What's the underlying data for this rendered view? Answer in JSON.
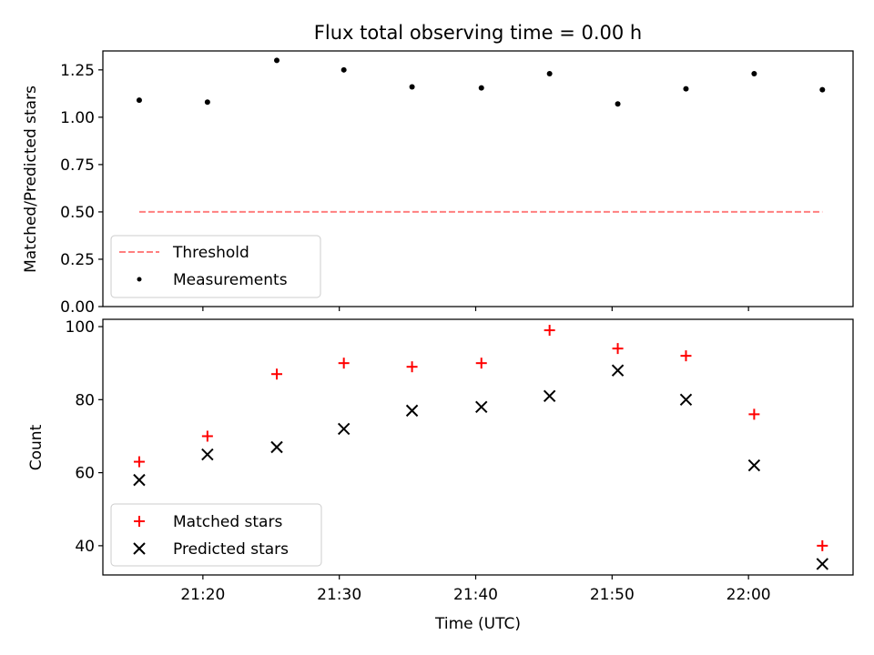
{
  "title": "Flux total observing time = 0.00 h",
  "chart_data": [
    {
      "type": "scatter",
      "panel": "top",
      "ylabel": "Matched/Predicted stars",
      "ylim": [
        0.0,
        1.35
      ],
      "yticks": [
        0.0,
        0.25,
        0.5,
        0.75,
        1.0,
        1.25
      ],
      "ytick_labels": [
        "0.00",
        "0.25",
        "0.50",
        "0.75",
        "1.00",
        "1.25"
      ],
      "x": [
        "21:15:20",
        "21:20:20",
        "21:25:25",
        "21:30:20",
        "21:35:20",
        "21:40:25",
        "21:45:25",
        "21:50:25",
        "21:55:25",
        "22:00:25",
        "22:05:25"
      ],
      "series": [
        {
          "name": "Measurements",
          "values": [
            1.09,
            1.08,
            1.3,
            1.25,
            1.16,
            1.155,
            1.23,
            1.07,
            1.15,
            1.23,
            1.145
          ],
          "color": "#000000",
          "marker": "dot"
        }
      ],
      "threshold": {
        "name": "Threshold",
        "value": 0.5,
        "color": "#ff7f7f",
        "style": "dashed"
      },
      "legend_position": "lower-left"
    },
    {
      "type": "scatter",
      "panel": "bottom",
      "ylabel": "Count",
      "xlabel": "Time (UTC)",
      "ylim": [
        32,
        102
      ],
      "yticks": [
        40,
        60,
        80,
        100
      ],
      "ytick_labels": [
        "40",
        "60",
        "80",
        "100"
      ],
      "xlim": [
        "21:12:40",
        "22:07:40"
      ],
      "xticks": [
        "21:20",
        "21:30",
        "21:40",
        "21:50",
        "22:00"
      ],
      "x": [
        "21:15:20",
        "21:20:20",
        "21:25:25",
        "21:30:20",
        "21:35:20",
        "21:40:25",
        "21:45:25",
        "21:50:25",
        "21:55:25",
        "22:00:25",
        "22:05:25"
      ],
      "series": [
        {
          "name": "Matched stars",
          "values": [
            63,
            70,
            87,
            90,
            89,
            90,
            99,
            94,
            92,
            76,
            40
          ],
          "color": "#ff0000",
          "marker": "plus"
        },
        {
          "name": "Predicted stars",
          "values": [
            58,
            65,
            67,
            72,
            77,
            78,
            81,
            88,
            80,
            62,
            35
          ],
          "color": "#000000",
          "marker": "x"
        }
      ],
      "legend_position": "lower-left"
    }
  ]
}
